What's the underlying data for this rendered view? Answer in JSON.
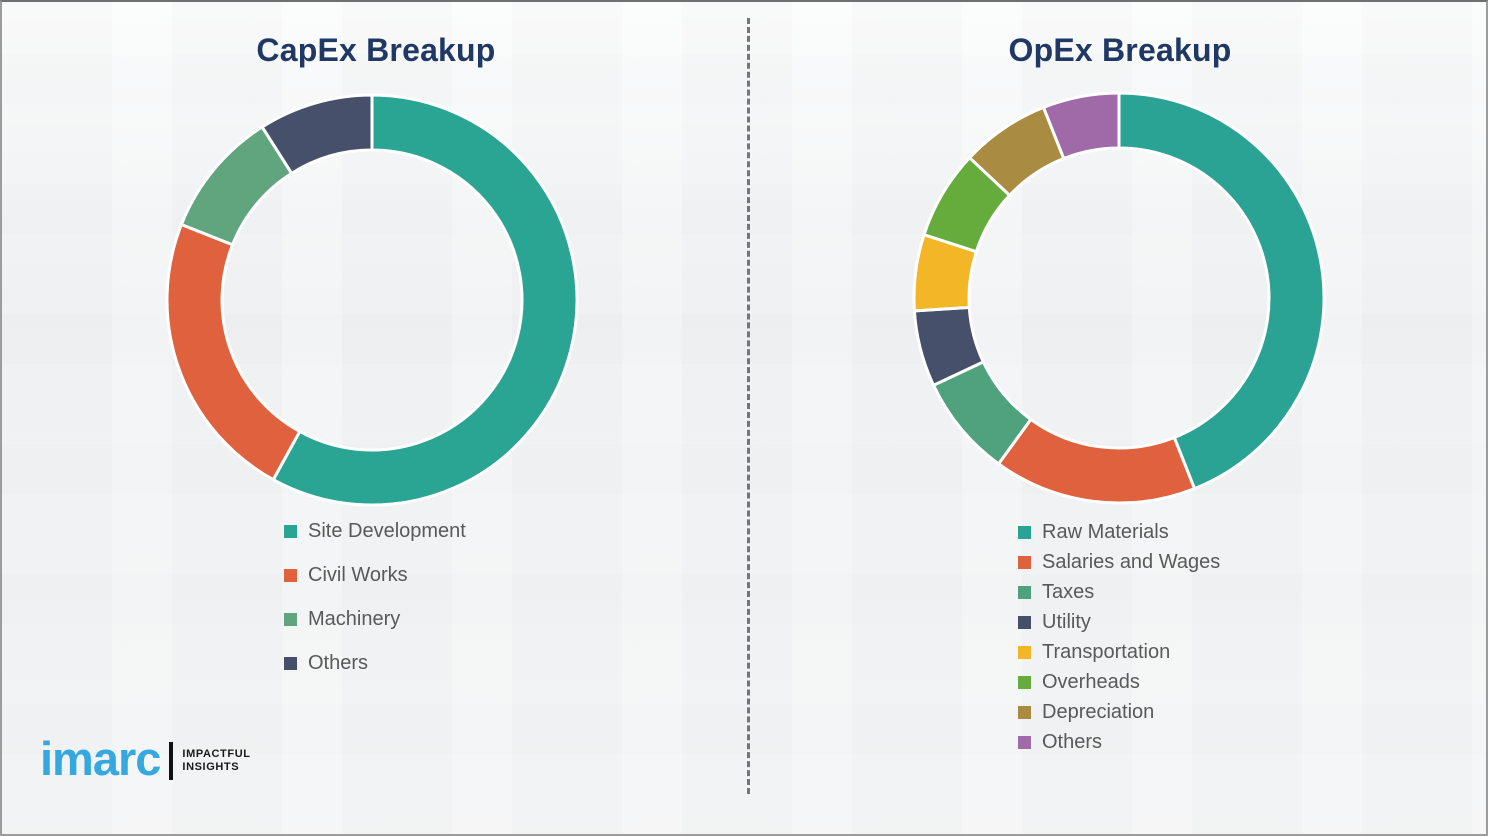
{
  "chart_data": [
    {
      "type": "pie",
      "subtype": "donut",
      "title": "CapEx Breakup",
      "labels": [
        "Site Development",
        "Civil Works",
        "Machinery",
        "Others"
      ],
      "values": [
        58,
        23,
        10,
        9
      ],
      "unit": "percent-estimated-from-arc-angles",
      "colors": [
        "#2aa493",
        "#e0613d",
        "#61a57e",
        "#47506b"
      ],
      "legend_position": "below-chart-left",
      "data_labels_shown": false
    },
    {
      "type": "pie",
      "subtype": "donut",
      "title": "OpEx Breakup",
      "labels": [
        "Raw Materials",
        "Salaries and Wages",
        "Taxes",
        "Utility",
        "Transportation",
        "Overheads",
        "Depreciation",
        "Others"
      ],
      "values": [
        44,
        16,
        8,
        6,
        6,
        7,
        7,
        6
      ],
      "unit": "percent-estimated-from-arc-angles",
      "colors": [
        "#2aa394",
        "#e0613d",
        "#4fa27d",
        "#47506b",
        "#f2b627",
        "#66ac3d",
        "#a98b41",
        "#a069a8"
      ],
      "legend_position": "below-chart-left",
      "data_labels_shown": false
    }
  ],
  "branding": {
    "logo_text": "imarc",
    "tagline_line1": "IMPACTFUL",
    "tagline_line2": "INSIGHTS",
    "logo_color": "#35a8e0"
  },
  "styles": {
    "title_color": "#1f3864",
    "legend_text_color": "#595959",
    "background_color": "#f1f2f3",
    "slice_gap_color": "#ffffff"
  }
}
